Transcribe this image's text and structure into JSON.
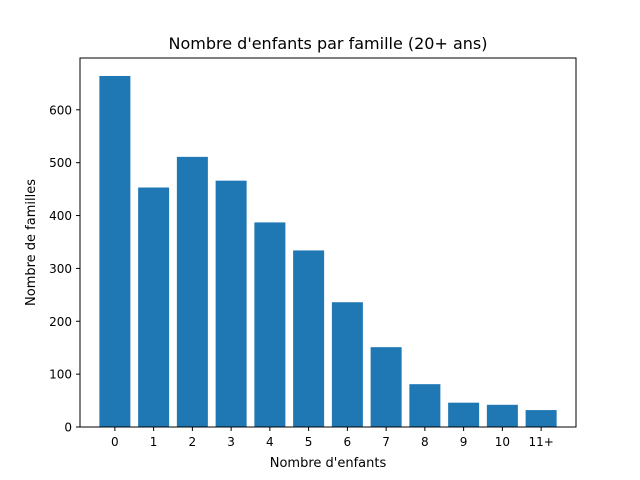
{
  "chart_data": {
    "type": "bar",
    "title": "Nombre d'enfants par famille (20+ ans)",
    "xlabel": "Nombre d'enfants",
    "ylabel": "Nombre de familles",
    "categories": [
      "0",
      "1",
      "2",
      "3",
      "4",
      "5",
      "6",
      "7",
      "8",
      "9",
      "10",
      "11+"
    ],
    "values": [
      664,
      453,
      511,
      466,
      387,
      334,
      236,
      151,
      81,
      46,
      42,
      32
    ],
    "ylim": [
      0,
      698
    ],
    "yticks": [
      0,
      100,
      200,
      300,
      400,
      500,
      600
    ],
    "grid": false,
    "legend": "none",
    "bar_color": "#1f77b4"
  }
}
